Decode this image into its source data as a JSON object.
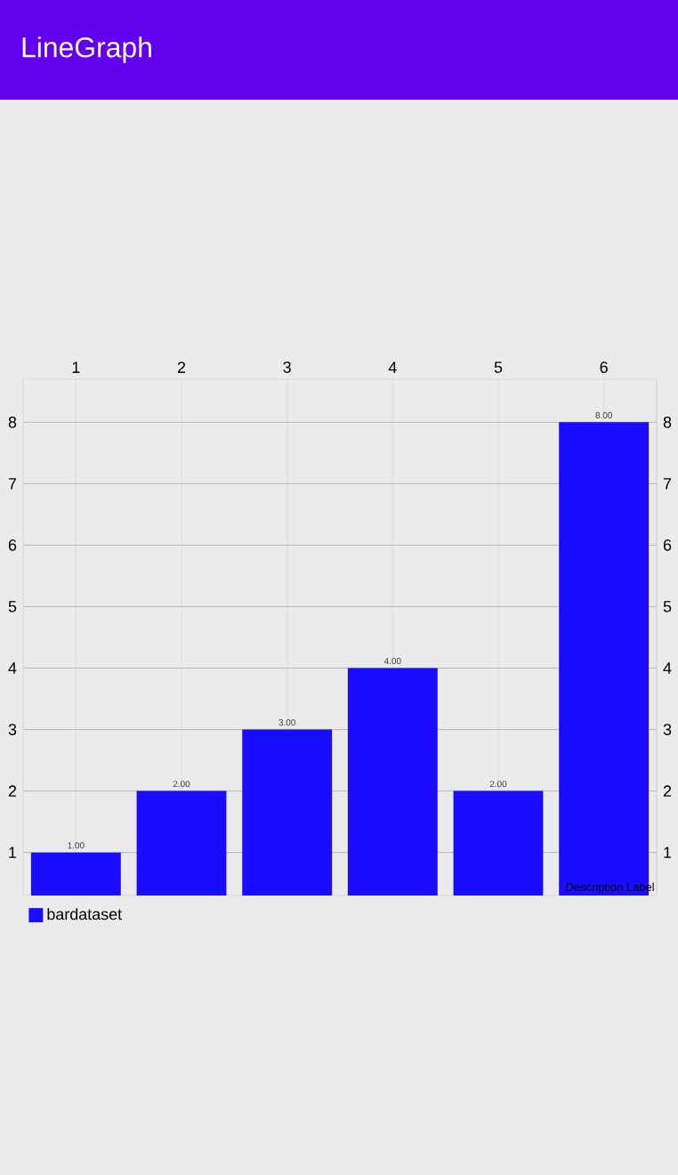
{
  "chart_data": {
    "type": "bar",
    "title": "LineGraph",
    "categories": [
      "1",
      "2",
      "3",
      "4",
      "5",
      "6"
    ],
    "series": [
      {
        "name": "bardataset",
        "color": "#1a0dff",
        "values": [
          1,
          2,
          3,
          4,
          2,
          8
        ],
        "value_labels": [
          "1.00",
          "2.00",
          "3.00",
          "4.00",
          "2.00",
          "8.00"
        ]
      }
    ],
    "ylim": [
      0.3,
      8.7
    ],
    "yticks": [
      1,
      2,
      3,
      4,
      5,
      6,
      7,
      8
    ],
    "y2lim": [
      0.3,
      8.7
    ],
    "y2ticks": [
      1,
      2,
      3,
      4,
      5,
      6,
      7,
      8
    ],
    "grid": true,
    "legend": "bottom left",
    "annotations": [
      "Description Label"
    ]
  }
}
